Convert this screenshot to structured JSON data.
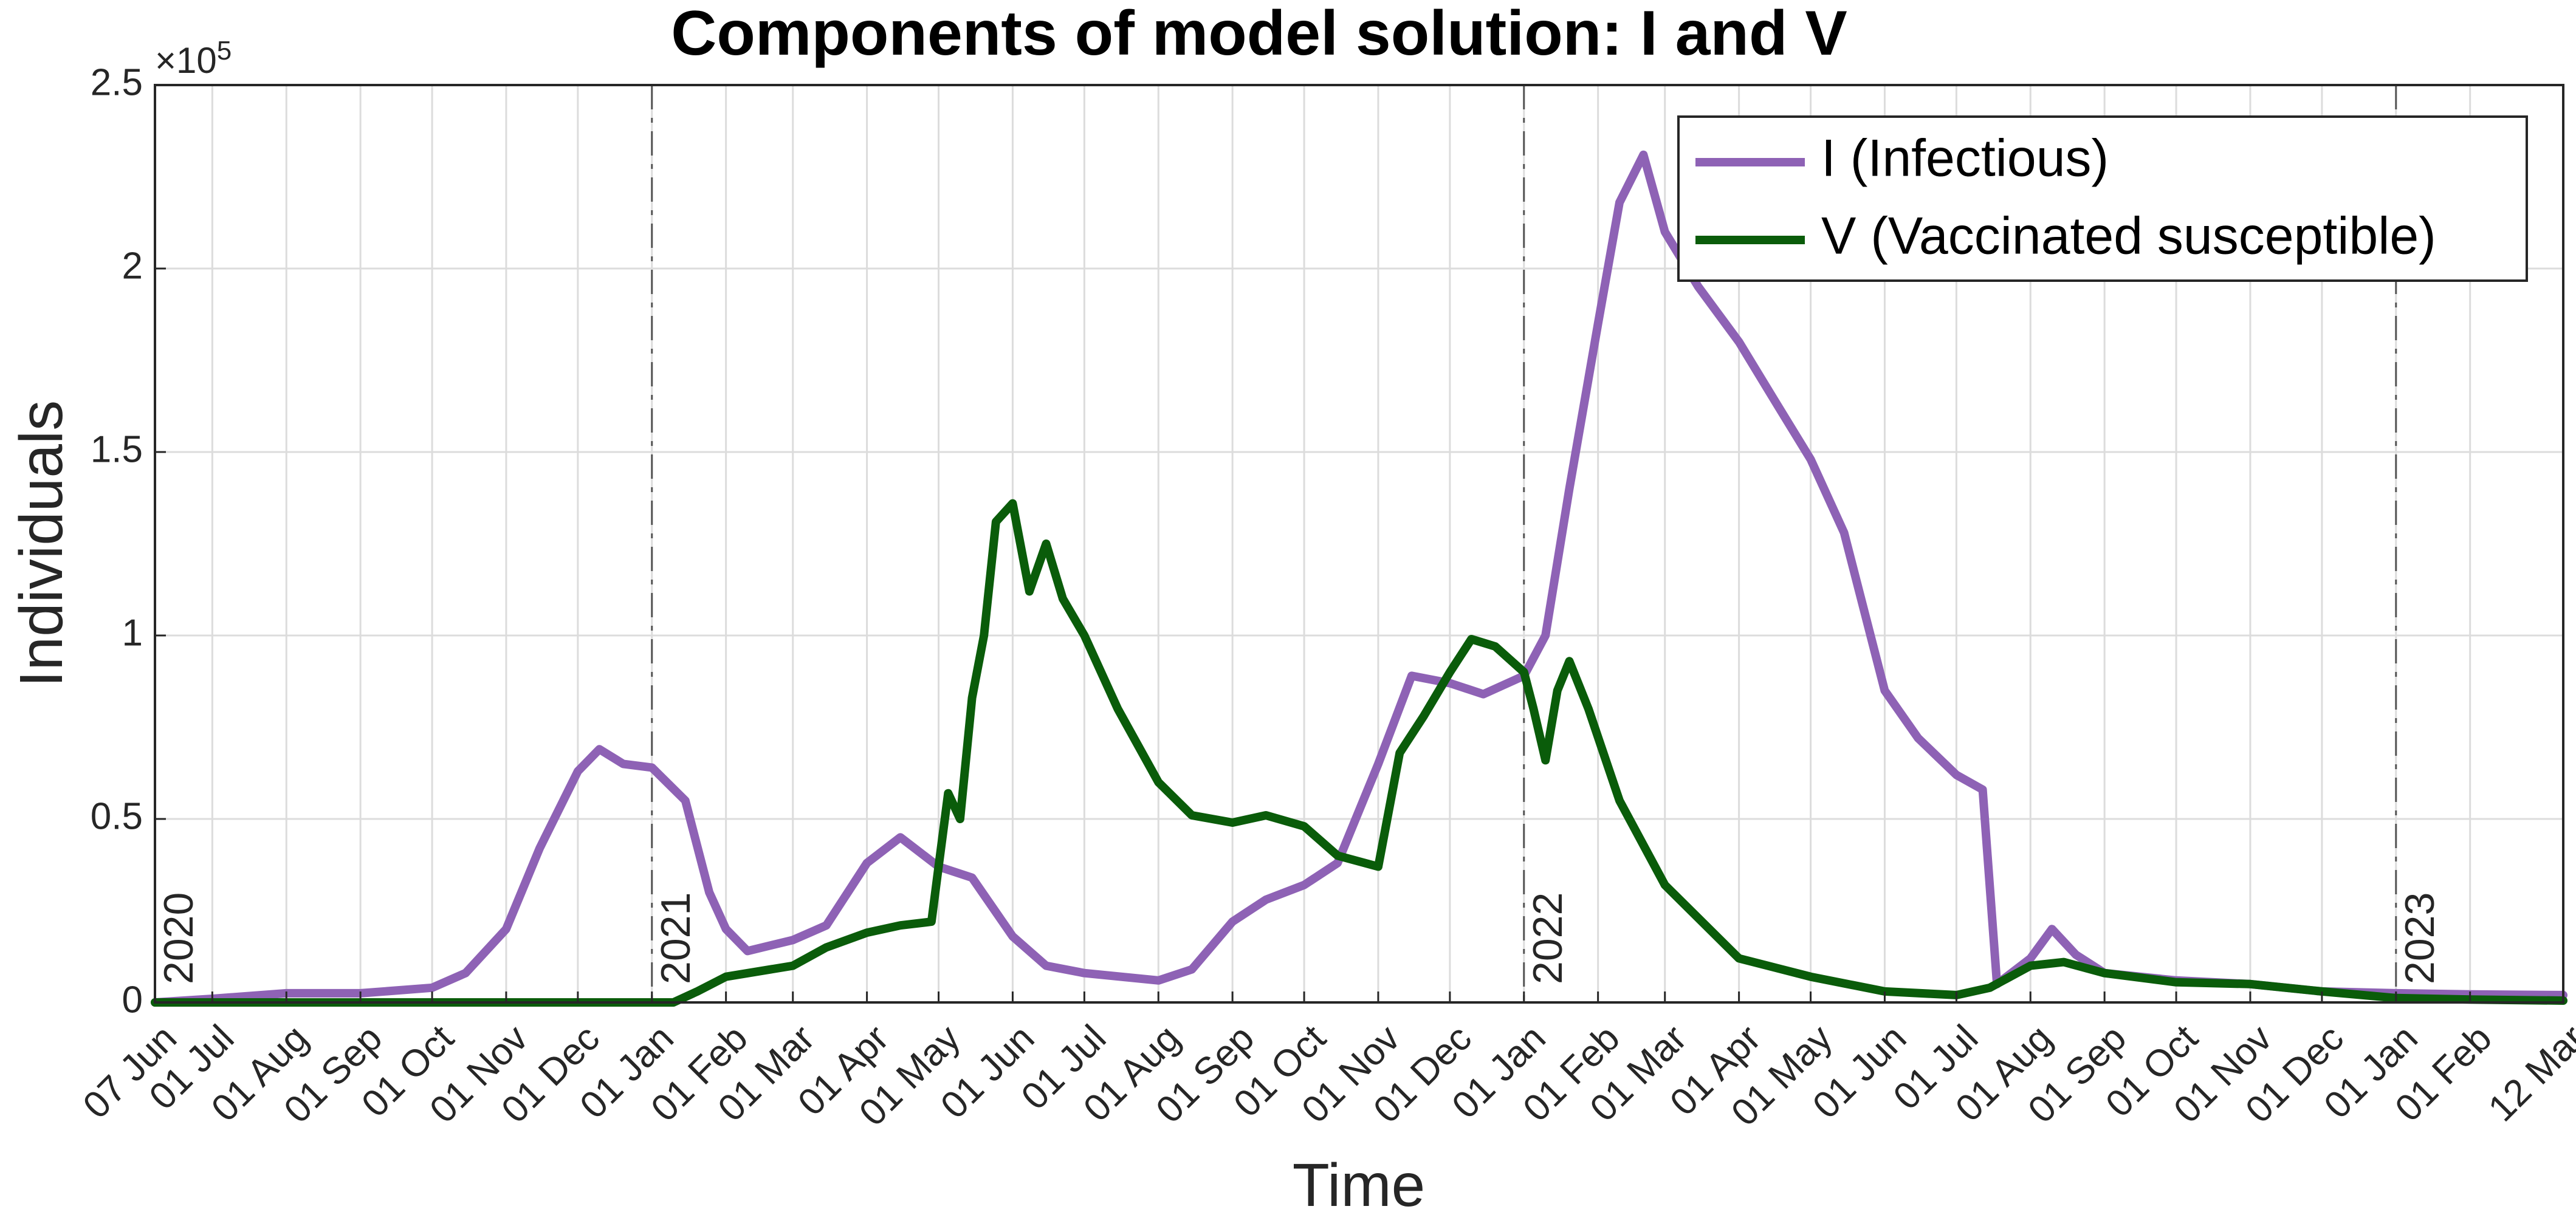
{
  "chart_data": {
    "type": "line",
    "title": "Components of model solution:  I and V",
    "xlabel": "Time",
    "ylabel": "Individuals",
    "y_exponent_label": "×10",
    "y_exponent_power": "5",
    "x_range": [
      "2020-06-07",
      "2023-03-12"
    ],
    "ylim": [
      0,
      250000
    ],
    "grid": true,
    "legend_location": "top-right",
    "y_ticks": [
      {
        "value": 0,
        "label": "0"
      },
      {
        "value": 50000,
        "label": "0.5"
      },
      {
        "value": 100000,
        "label": "1"
      },
      {
        "value": 150000,
        "label": "1.5"
      },
      {
        "value": 200000,
        "label": "2"
      },
      {
        "value": 250000,
        "label": "2.5"
      }
    ],
    "x_ticks": [
      {
        "date": "2020-06-07",
        "label": "07 Jun"
      },
      {
        "date": "2020-07-01",
        "label": "01 Jul"
      },
      {
        "date": "2020-08-01",
        "label": "01 Aug"
      },
      {
        "date": "2020-09-01",
        "label": "01 Sep"
      },
      {
        "date": "2020-10-01",
        "label": "01 Oct"
      },
      {
        "date": "2020-11-01",
        "label": "01 Nov"
      },
      {
        "date": "2020-12-01",
        "label": "01 Dec"
      },
      {
        "date": "2021-01-01",
        "label": "01 Jan"
      },
      {
        "date": "2021-02-01",
        "label": "01 Feb"
      },
      {
        "date": "2021-03-01",
        "label": "01 Mar"
      },
      {
        "date": "2021-04-01",
        "label": "01 Apr"
      },
      {
        "date": "2021-05-01",
        "label": "01 May"
      },
      {
        "date": "2021-06-01",
        "label": "01 Jun"
      },
      {
        "date": "2021-07-01",
        "label": "01 Jul"
      },
      {
        "date": "2021-08-01",
        "label": "01 Aug"
      },
      {
        "date": "2021-09-01",
        "label": "01 Sep"
      },
      {
        "date": "2021-10-01",
        "label": "01 Oct"
      },
      {
        "date": "2021-11-01",
        "label": "01 Nov"
      },
      {
        "date": "2021-12-01",
        "label": "01 Dec"
      },
      {
        "date": "2022-01-01",
        "label": "01 Jan"
      },
      {
        "date": "2022-02-01",
        "label": "01 Feb"
      },
      {
        "date": "2022-03-01",
        "label": "01 Mar"
      },
      {
        "date": "2022-04-01",
        "label": "01 Apr"
      },
      {
        "date": "2022-05-01",
        "label": "01 May"
      },
      {
        "date": "2022-06-01",
        "label": "01 Jun"
      },
      {
        "date": "2022-07-01",
        "label": "01 Jul"
      },
      {
        "date": "2022-08-01",
        "label": "01 Aug"
      },
      {
        "date": "2022-09-01",
        "label": "01 Sep"
      },
      {
        "date": "2022-10-01",
        "label": "01 Oct"
      },
      {
        "date": "2022-11-01",
        "label": "01 Nov"
      },
      {
        "date": "2022-12-01",
        "label": "01 Dec"
      },
      {
        "date": "2023-01-01",
        "label": "01 Jan"
      },
      {
        "date": "2023-02-01",
        "label": "01 Feb"
      },
      {
        "date": "2023-03-12",
        "label": "12 Mar"
      }
    ],
    "year_markers": [
      {
        "date": "2020-06-07",
        "label": "2020"
      },
      {
        "date": "2021-01-01",
        "label": "2021"
      },
      {
        "date": "2022-01-01",
        "label": "2022"
      },
      {
        "date": "2023-01-01",
        "label": "2023"
      }
    ],
    "series": [
      {
        "name": "I (Infectious)",
        "color": "#8e62b5",
        "points": [
          [
            "2020-06-07",
            0
          ],
          [
            "2020-07-01",
            1000
          ],
          [
            "2020-08-01",
            2500
          ],
          [
            "2020-09-01",
            2500
          ],
          [
            "2020-10-01",
            4000
          ],
          [
            "2020-10-15",
            8000
          ],
          [
            "2020-11-01",
            20000
          ],
          [
            "2020-11-15",
            42000
          ],
          [
            "2020-12-01",
            63000
          ],
          [
            "2020-12-10",
            69000
          ],
          [
            "2020-12-20",
            65000
          ],
          [
            "2021-01-01",
            64000
          ],
          [
            "2021-01-15",
            55000
          ],
          [
            "2021-01-25",
            30000
          ],
          [
            "2021-02-01",
            20000
          ],
          [
            "2021-02-10",
            14000
          ],
          [
            "2021-03-01",
            17000
          ],
          [
            "2021-03-15",
            21000
          ],
          [
            "2021-04-01",
            38000
          ],
          [
            "2021-04-15",
            45000
          ],
          [
            "2021-05-01",
            37000
          ],
          [
            "2021-05-15",
            34000
          ],
          [
            "2021-06-01",
            18000
          ],
          [
            "2021-06-15",
            10000
          ],
          [
            "2021-07-01",
            8000
          ],
          [
            "2021-08-01",
            6000
          ],
          [
            "2021-08-15",
            9000
          ],
          [
            "2021-09-01",
            22000
          ],
          [
            "2021-09-15",
            28000
          ],
          [
            "2021-10-01",
            32000
          ],
          [
            "2021-10-15",
            38000
          ],
          [
            "2021-11-01",
            65000
          ],
          [
            "2021-11-15",
            89000
          ],
          [
            "2021-12-01",
            87000
          ],
          [
            "2021-12-15",
            84000
          ],
          [
            "2022-01-01",
            89000
          ],
          [
            "2022-01-10",
            100000
          ],
          [
            "2022-01-20",
            140000
          ],
          [
            "2022-02-01",
            185000
          ],
          [
            "2022-02-10",
            218000
          ],
          [
            "2022-02-20",
            231000
          ],
          [
            "2022-03-01",
            210000
          ],
          [
            "2022-03-15",
            195000
          ],
          [
            "2022-04-01",
            180000
          ],
          [
            "2022-04-15",
            165000
          ],
          [
            "2022-05-01",
            148000
          ],
          [
            "2022-05-15",
            128000
          ],
          [
            "2022-06-01",
            85000
          ],
          [
            "2022-06-15",
            72000
          ],
          [
            "2022-07-01",
            62000
          ],
          [
            "2022-07-12",
            58000
          ],
          [
            "2022-07-18",
            5000
          ],
          [
            "2022-08-01",
            12000
          ],
          [
            "2022-08-10",
            20000
          ],
          [
            "2022-08-20",
            13000
          ],
          [
            "2022-09-01",
            8000
          ],
          [
            "2022-10-01",
            6000
          ],
          [
            "2022-11-01",
            5000
          ],
          [
            "2022-12-01",
            3000
          ],
          [
            "2023-01-01",
            2500
          ],
          [
            "2023-02-01",
            2200
          ],
          [
            "2023-03-12",
            2000
          ]
        ]
      },
      {
        "name": "V (Vaccinated susceptible)",
        "color": "#0a5c0a",
        "points": [
          [
            "2020-06-07",
            0
          ],
          [
            "2020-12-31",
            0
          ],
          [
            "2021-01-10",
            0
          ],
          [
            "2021-01-20",
            3000
          ],
          [
            "2021-02-01",
            7000
          ],
          [
            "2021-03-01",
            10000
          ],
          [
            "2021-03-15",
            15000
          ],
          [
            "2021-04-01",
            19000
          ],
          [
            "2021-04-15",
            21000
          ],
          [
            "2021-04-28",
            22000
          ],
          [
            "2021-05-01",
            37000
          ],
          [
            "2021-05-05",
            57000
          ],
          [
            "2021-05-10",
            50000
          ],
          [
            "2021-05-15",
            83000
          ],
          [
            "2021-05-20",
            100000
          ],
          [
            "2021-05-25",
            131000
          ],
          [
            "2021-06-01",
            136000
          ],
          [
            "2021-06-08",
            112000
          ],
          [
            "2021-06-15",
            125000
          ],
          [
            "2021-06-22",
            110000
          ],
          [
            "2021-07-01",
            100000
          ],
          [
            "2021-07-15",
            80000
          ],
          [
            "2021-08-01",
            60000
          ],
          [
            "2021-08-15",
            51000
          ],
          [
            "2021-09-01",
            49000
          ],
          [
            "2021-09-15",
            51000
          ],
          [
            "2021-10-01",
            48000
          ],
          [
            "2021-10-15",
            40000
          ],
          [
            "2021-11-01",
            37000
          ],
          [
            "2021-11-10",
            68000
          ],
          [
            "2021-11-20",
            78000
          ],
          [
            "2021-12-01",
            90000
          ],
          [
            "2021-12-10",
            99000
          ],
          [
            "2021-12-20",
            97000
          ],
          [
            "2022-01-01",
            90000
          ],
          [
            "2022-01-05",
            80000
          ],
          [
            "2022-01-10",
            66000
          ],
          [
            "2022-01-15",
            85000
          ],
          [
            "2022-01-20",
            93000
          ],
          [
            "2022-01-28",
            80000
          ],
          [
            "2022-02-10",
            55000
          ],
          [
            "2022-03-01",
            32000
          ],
          [
            "2022-04-01",
            12000
          ],
          [
            "2022-05-01",
            7000
          ],
          [
            "2022-06-01",
            3000
          ],
          [
            "2022-07-01",
            2000
          ],
          [
            "2022-07-15",
            4000
          ],
          [
            "2022-08-01",
            10000
          ],
          [
            "2022-08-15",
            11000
          ],
          [
            "2022-09-01",
            8000
          ],
          [
            "2022-10-01",
            5500
          ],
          [
            "2022-11-01",
            5000
          ],
          [
            "2022-12-01",
            3000
          ],
          [
            "2023-01-01",
            1200
          ],
          [
            "2023-02-01",
            800
          ],
          [
            "2023-03-12",
            500
          ]
        ]
      }
    ]
  }
}
